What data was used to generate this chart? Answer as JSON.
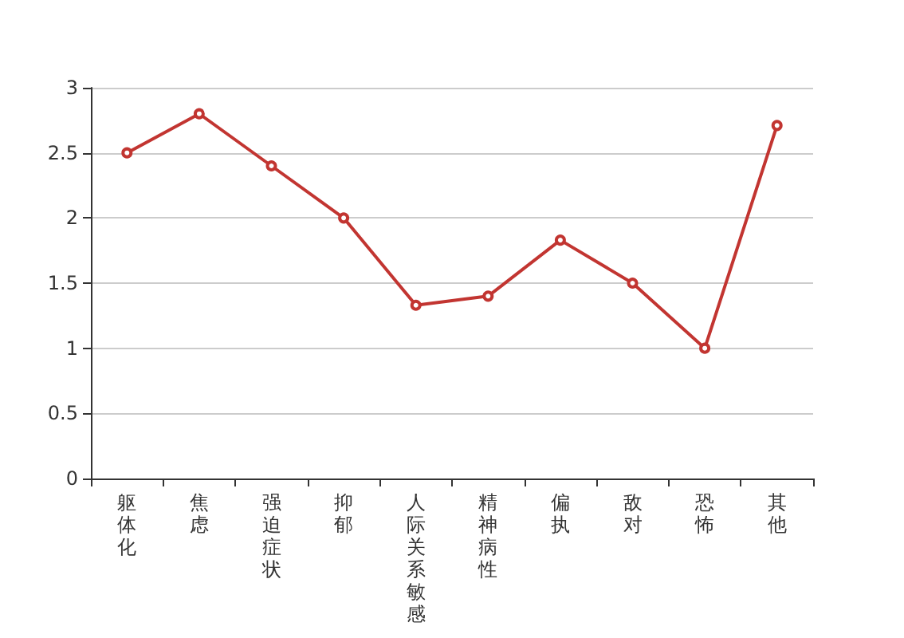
{
  "chart_data": {
    "type": "line",
    "categories": [
      "躯体化",
      "焦虑",
      "强迫症状",
      "抑郁",
      "人际关系敏感",
      "精神病性",
      "偏执",
      "敌对",
      "恐怖",
      "其他"
    ],
    "series": [
      {
        "color": "#c23531",
        "values": [
          2.5,
          2.8,
          2.4,
          2.0,
          1.33,
          1.4,
          1.83,
          1.5,
          1.0,
          2.71
        ]
      }
    ],
    "ylim": [
      0,
      3
    ],
    "yticks": [
      0,
      0.5,
      1,
      1.5,
      2,
      2.5,
      3
    ],
    "grid": "y",
    "marker": "circle",
    "line_style": "solid"
  }
}
